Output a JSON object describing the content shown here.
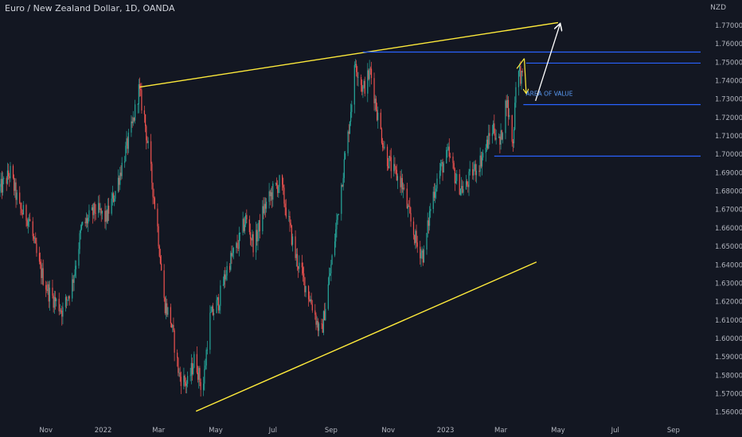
{
  "chart_data": {
    "type": "candlestick",
    "title": "Euro / New Zealand Dollar, 1D, OANDA",
    "currency": "NZD",
    "ylim": [
      1.556,
      1.776
    ],
    "yticks": [
      1.56,
      1.57,
      1.58,
      1.59,
      1.6,
      1.61,
      1.62,
      1.63,
      1.64,
      1.65,
      1.66,
      1.67,
      1.68,
      1.69,
      1.7,
      1.71,
      1.72,
      1.73,
      1.74,
      1.75,
      1.76,
      1.77
    ],
    "x_start": "2021-09-13",
    "x_end": "2023-09-30",
    "xticks": [
      {
        "label": "Nov",
        "date": "2021-11-01"
      },
      {
        "label": "2022",
        "date": "2022-01-01"
      },
      {
        "label": "Mar",
        "date": "2022-03-01"
      },
      {
        "label": "May",
        "date": "2022-05-01"
      },
      {
        "label": "Jul",
        "date": "2022-07-01"
      },
      {
        "label": "Sep",
        "date": "2022-09-01"
      },
      {
        "label": "Nov",
        "date": "2022-11-01"
      },
      {
        "label": "2023",
        "date": "2023-01-01"
      },
      {
        "label": "Mar",
        "date": "2023-03-01"
      },
      {
        "label": "May",
        "date": "2023-05-01"
      },
      {
        "label": "Jul",
        "date": "2023-07-01"
      },
      {
        "label": "Sep",
        "date": "2023-09-01"
      }
    ],
    "price_path": [
      [
        "2021-09-13",
        1.68
      ],
      [
        "2021-09-25",
        1.69
      ],
      [
        "2021-10-05",
        1.67
      ],
      [
        "2021-10-15",
        1.665
      ],
      [
        "2021-10-25",
        1.64
      ],
      [
        "2021-11-05",
        1.625
      ],
      [
        "2021-11-20",
        1.615
      ],
      [
        "2021-11-30",
        1.63
      ],
      [
        "2021-12-10",
        1.66
      ],
      [
        "2021-12-25",
        1.67
      ],
      [
        "2022-01-05",
        1.665
      ],
      [
        "2022-01-15",
        1.68
      ],
      [
        "2022-01-25",
        1.7
      ],
      [
        "2022-02-02",
        1.715
      ],
      [
        "2022-02-09",
        1.735
      ],
      [
        "2022-02-15",
        1.72
      ],
      [
        "2022-02-22",
        1.69
      ],
      [
        "2022-03-01",
        1.66
      ],
      [
        "2022-03-08",
        1.62
      ],
      [
        "2022-03-15",
        1.61
      ],
      [
        "2022-03-24",
        1.58
      ],
      [
        "2022-04-02",
        1.575
      ],
      [
        "2022-04-10",
        1.59
      ],
      [
        "2022-04-18",
        1.57
      ],
      [
        "2022-04-25",
        1.61
      ],
      [
        "2022-05-05",
        1.62
      ],
      [
        "2022-05-15",
        1.64
      ],
      [
        "2022-05-25",
        1.65
      ],
      [
        "2022-06-03",
        1.665
      ],
      [
        "2022-06-12",
        1.65
      ],
      [
        "2022-06-22",
        1.67
      ],
      [
        "2022-07-02",
        1.68
      ],
      [
        "2022-07-10",
        1.685
      ],
      [
        "2022-07-18",
        1.665
      ],
      [
        "2022-07-26",
        1.645
      ],
      [
        "2022-08-05",
        1.63
      ],
      [
        "2022-08-15",
        1.615
      ],
      [
        "2022-08-22",
        1.6
      ],
      [
        "2022-08-29",
        1.625
      ],
      [
        "2022-09-05",
        1.65
      ],
      [
        "2022-09-12",
        1.68
      ],
      [
        "2022-09-20",
        1.71
      ],
      [
        "2022-09-28",
        1.75
      ],
      [
        "2022-10-06",
        1.735
      ],
      [
        "2022-10-14",
        1.745
      ],
      [
        "2022-10-22",
        1.72
      ],
      [
        "2022-10-30",
        1.7
      ],
      [
        "2022-11-08",
        1.69
      ],
      [
        "2022-11-16",
        1.685
      ],
      [
        "2022-11-25",
        1.665
      ],
      [
        "2022-12-03",
        1.65
      ],
      [
        "2022-12-10",
        1.645
      ],
      [
        "2022-12-18",
        1.675
      ],
      [
        "2022-12-26",
        1.69
      ],
      [
        "2023-01-05",
        1.7
      ],
      [
        "2023-01-14",
        1.685
      ],
      [
        "2023-01-22",
        1.68
      ],
      [
        "2023-01-30",
        1.69
      ],
      [
        "2023-02-07",
        1.695
      ],
      [
        "2023-02-15",
        1.705
      ],
      [
        "2023-02-22",
        1.715
      ],
      [
        "2023-03-01",
        1.705
      ],
      [
        "2023-03-08",
        1.73
      ],
      [
        "2023-03-15",
        1.705
      ],
      [
        "2023-03-18",
        1.74
      ],
      [
        "2023-03-22",
        1.745
      ],
      [
        "2023-03-26",
        1.738
      ]
    ],
    "annotations": {
      "upper_trendline": [
        [
          "2022-02-09",
          1.7365
        ],
        [
          "2023-05-01",
          1.7715
        ]
      ],
      "lower_trendline": [
        [
          "2022-04-10",
          1.5605
        ],
        [
          "2023-04-08",
          1.6415
        ]
      ],
      "resistance_lines": [
        {
          "from": "2022-10-05",
          "to": "2023-09-30",
          "y": 1.7555
        },
        {
          "from": "2023-03-28",
          "to": "2023-09-30",
          "y": 1.7495
        }
      ],
      "support_lines": [
        {
          "from": "2023-03-25",
          "to": "2023-09-30",
          "y": 1.727
        },
        {
          "from": "2023-02-22",
          "to": "2023-09-30",
          "y": 1.699
        }
      ],
      "area_label": "AREA OF VALUE",
      "area_label_anchor": [
        "2023-03-26",
        1.731
      ],
      "projection_arrow": [
        [
          "2023-04-07",
          1.729
        ],
        [
          "2023-05-03",
          1.7705
        ]
      ],
      "small_arrow": [
        [
          "2023-03-18",
          1.7465
        ],
        [
          "2023-03-26",
          1.752
        ]
      ],
      "pullback_arrow": [
        [
          "2023-03-26",
          1.752
        ],
        [
          "2023-03-28",
          1.7335
        ]
      ]
    },
    "colors": {
      "up": "#26a69a",
      "down": "#ef5350",
      "trendline": "#ffeb3b",
      "levels": "#2962ff",
      "arrow": "#ffffff",
      "background": "#131722",
      "axis_text": "#b2b5be"
    }
  }
}
